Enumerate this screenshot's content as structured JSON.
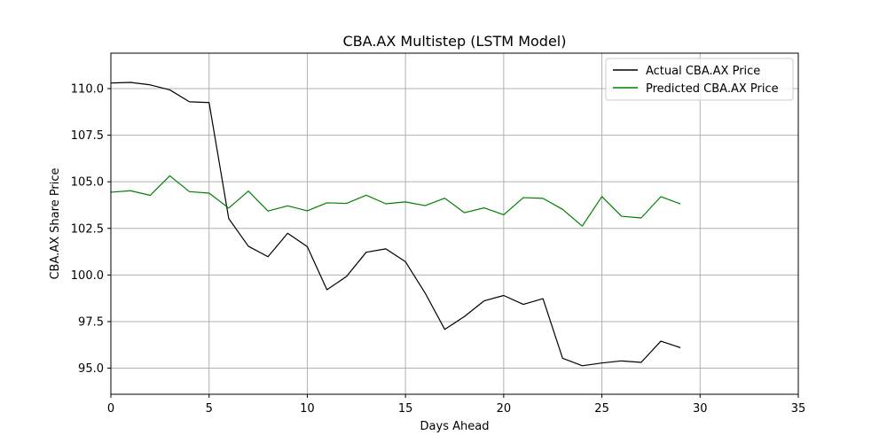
{
  "chart_data": {
    "type": "line",
    "title": "CBA.AX Multistep (LSTM Model)",
    "xlabel": "Days Ahead",
    "ylabel": "CBA.AX Share Price",
    "xlim": [
      0,
      35
    ],
    "ylim": [
      93.6,
      111.9
    ],
    "xticks": [
      0,
      5,
      10,
      15,
      20,
      25,
      30,
      35
    ],
    "xtick_labels": [
      "0",
      "5",
      "10",
      "15",
      "20",
      "25",
      "30",
      "35"
    ],
    "yticks": [
      95.0,
      97.5,
      100.0,
      102.5,
      105.0,
      107.5,
      110.0
    ],
    "ytick_labels": [
      "95.0",
      "97.5",
      "100.0",
      "102.5",
      "105.0",
      "107.5",
      "110.0"
    ],
    "grid": true,
    "legend_position": "top-right",
    "x": [
      0,
      1,
      2,
      3,
      4,
      5,
      6,
      7,
      8,
      9,
      10,
      11,
      12,
      13,
      14,
      15,
      16,
      17,
      18,
      19,
      20,
      21,
      22,
      23,
      24,
      25,
      26,
      27,
      28,
      29
    ],
    "series": [
      {
        "name": "Actual CBA.AX Price",
        "color": "#000000",
        "values": [
          110.3,
          110.33,
          110.2,
          109.93,
          109.29,
          109.25,
          103.03,
          101.54,
          100.98,
          102.24,
          101.52,
          99.21,
          99.92,
          101.22,
          101.4,
          100.71,
          99.03,
          97.08,
          97.77,
          98.61,
          98.9,
          98.42,
          98.73,
          95.53,
          95.13,
          95.28,
          95.39,
          95.31,
          96.45,
          96.1
        ]
      },
      {
        "name": "Predicted CBA.AX Price",
        "color": "#008000",
        "values": [
          104.44,
          104.52,
          104.27,
          105.32,
          104.47,
          104.39,
          103.59,
          104.5,
          103.43,
          103.71,
          103.44,
          103.87,
          103.84,
          104.28,
          103.82,
          103.92,
          103.72,
          104.12,
          103.34,
          103.6,
          103.23,
          104.15,
          104.11,
          103.52,
          102.62,
          104.21,
          103.15,
          103.06,
          104.2,
          103.81
        ]
      }
    ]
  }
}
